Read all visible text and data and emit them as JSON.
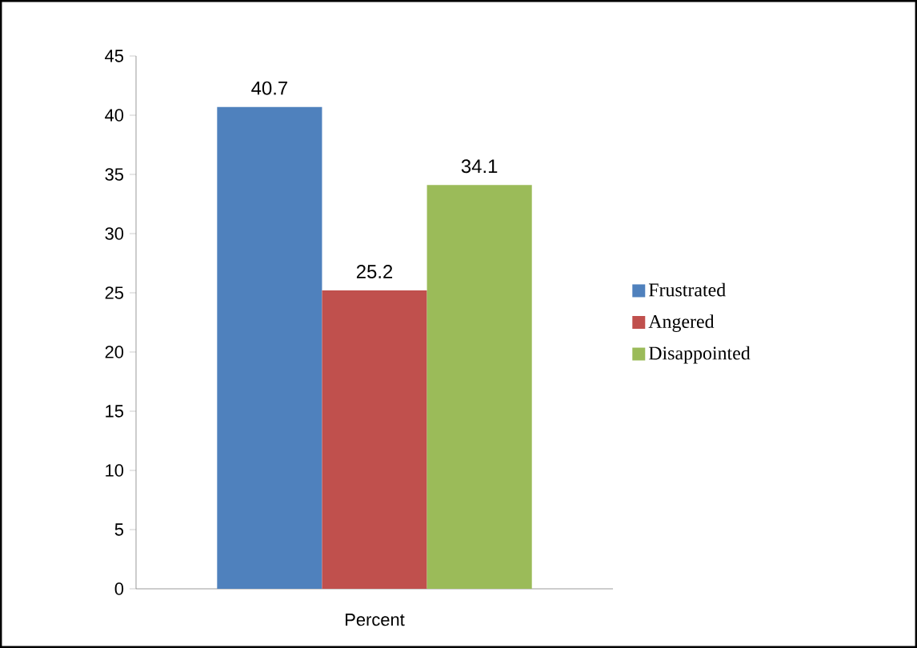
{
  "chart_data": {
    "type": "bar",
    "categories": [
      "Percent"
    ],
    "series": [
      {
        "name": "Frustrated",
        "color": "#4f81bd",
        "values": [
          40.7
        ]
      },
      {
        "name": "Angered",
        "color": "#c0504d",
        "values": [
          25.2
        ]
      },
      {
        "name": "Disappointed",
        "color": "#9bbb59",
        "values": [
          34.1
        ]
      }
    ],
    "ylim": [
      0,
      45
    ],
    "yticks": [
      0,
      5,
      10,
      15,
      20,
      25,
      30,
      35,
      40,
      45
    ],
    "data_labels": true,
    "legend": "right"
  }
}
